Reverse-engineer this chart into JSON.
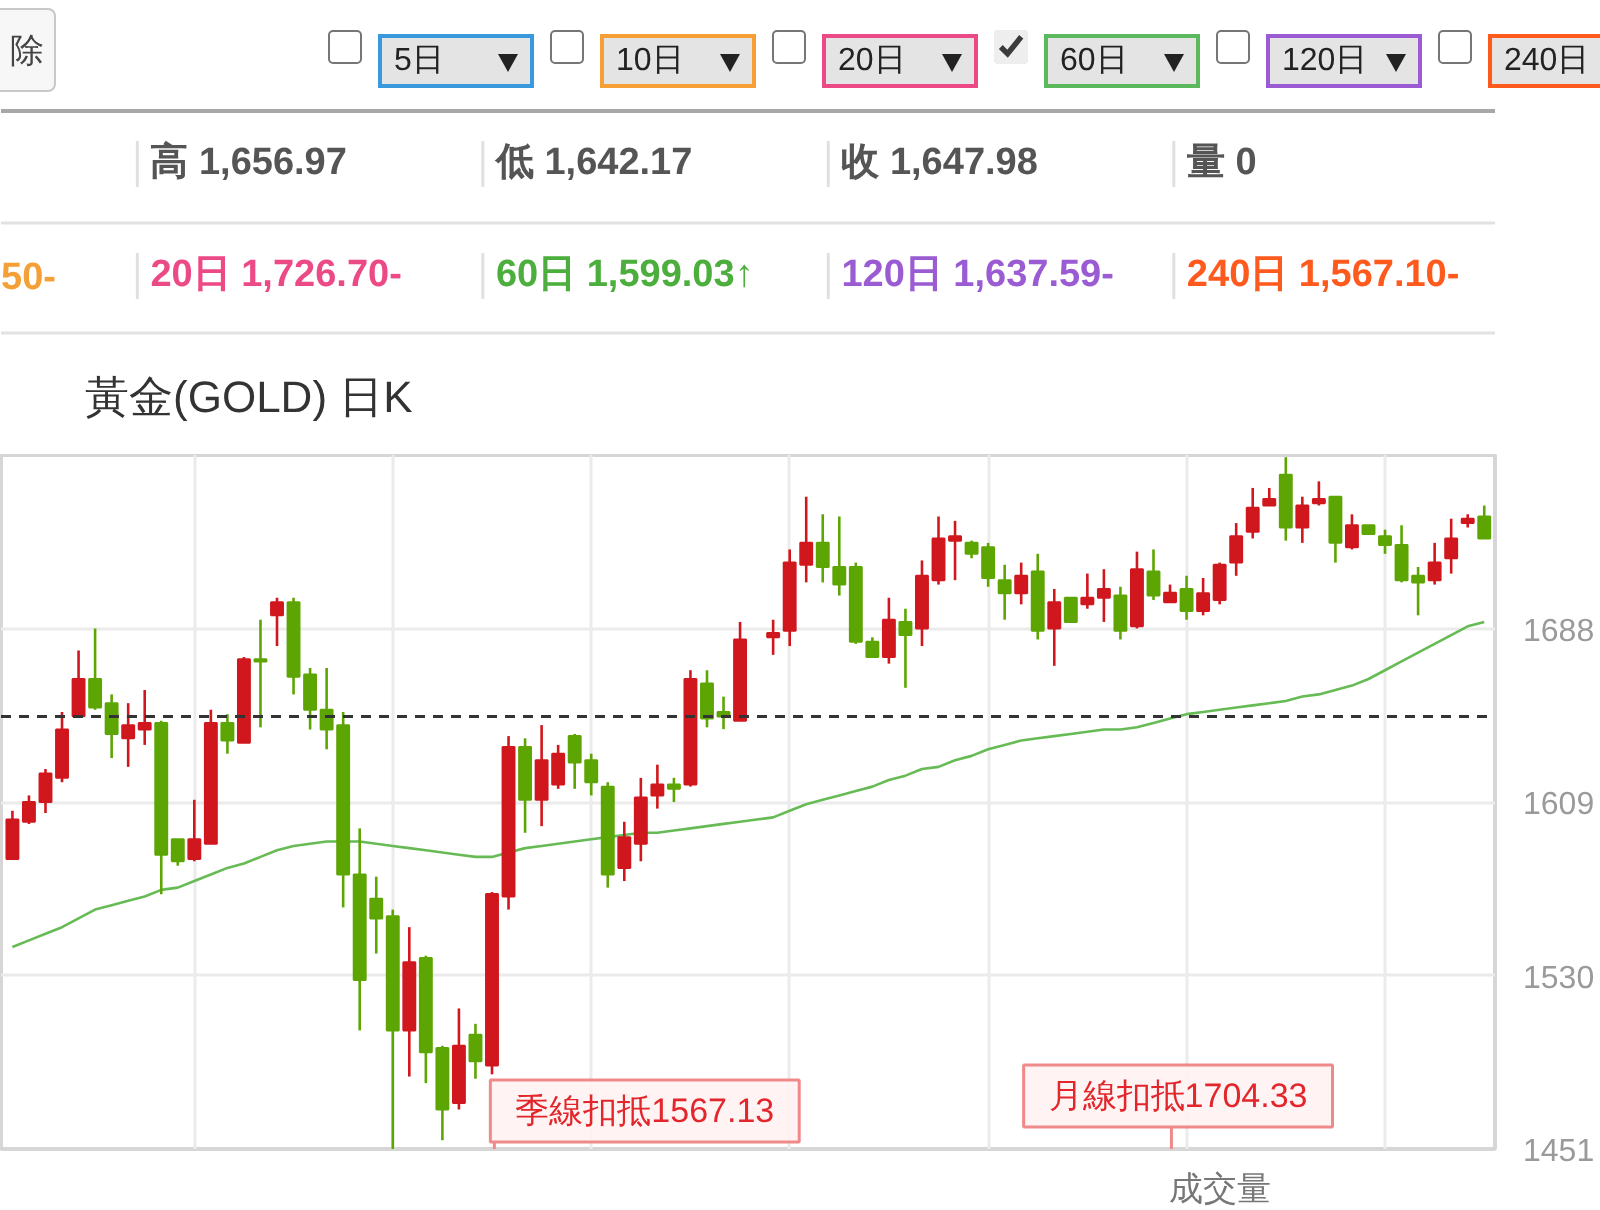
{
  "chart_data": {
    "type": "candlestick",
    "title": "黃金(GOLD) 日K",
    "categories": [
      null,
      null,
      null,
      null,
      null,
      null,
      null,
      null,
      null,
      null,
      null,
      null,
      null,
      null,
      null,
      null,
      null,
      null,
      null,
      null,
      null,
      null,
      null,
      null,
      null,
      null,
      null,
      null,
      null,
      null,
      null,
      null,
      null,
      null,
      null,
      null,
      null,
      null,
      null,
      null,
      null,
      null,
      null,
      null,
      null,
      null,
      null,
      null,
      null,
      null,
      null,
      null,
      null,
      null,
      null,
      null,
      null,
      null,
      null,
      null,
      null,
      null,
      null,
      null,
      null,
      null,
      null,
      null,
      null,
      null,
      null,
      null,
      null,
      null,
      null,
      null,
      null,
      null,
      null,
      null,
      null,
      null,
      null,
      null,
      null,
      null,
      null,
      null,
      null,
      null
    ],
    "ohlc": [
      [
        1583,
        1605,
        1583,
        1601
      ],
      [
        1600,
        1612,
        1599,
        1609
      ],
      [
        1609,
        1624,
        1604,
        1622
      ],
      [
        1620,
        1650,
        1618,
        1642
      ],
      [
        1648,
        1678,
        1648,
        1665
      ],
      [
        1665,
        1688,
        1651,
        1652
      ],
      [
        1654,
        1658,
        1629,
        1640
      ],
      [
        1638,
        1654,
        1625,
        1644
      ],
      [
        1642,
        1660,
        1635,
        1645
      ],
      [
        1645,
        1646,
        1567,
        1585
      ],
      [
        1592,
        1592,
        1580,
        1582
      ],
      [
        1583,
        1610,
        1582,
        1592
      ],
      [
        1590,
        1651,
        1590,
        1645
      ],
      [
        1645,
        1649,
        1631,
        1637
      ],
      [
        1636,
        1675,
        1636,
        1674
      ],
      [
        1674,
        1692,
        1643,
        1673
      ],
      [
        1694,
        1702,
        1680,
        1700
      ],
      [
        1700,
        1702,
        1658,
        1666
      ],
      [
        1667,
        1670,
        1642,
        1651
      ],
      [
        1651,
        1670,
        1633,
        1642
      ],
      [
        1644,
        1650,
        1561,
        1576
      ],
      [
        1576,
        1597,
        1505,
        1528
      ],
      [
        1565,
        1575,
        1540,
        1556
      ],
      [
        1557,
        1560,
        1451,
        1505
      ],
      [
        1505,
        1552,
        1484,
        1536
      ],
      [
        1538,
        1539,
        1481,
        1495
      ],
      [
        1497,
        1498,
        1455,
        1469
      ],
      [
        1472,
        1515,
        1469,
        1498
      ],
      [
        1503,
        1508,
        1483,
        1491
      ],
      [
        1489,
        1568,
        1485,
        1567.13
      ],
      [
        1566,
        1639,
        1560,
        1634
      ],
      [
        1634,
        1638,
        1595,
        1610
      ],
      [
        1610,
        1644,
        1598,
        1628
      ],
      [
        1617,
        1635,
        1615,
        1631
      ],
      [
        1639,
        1640,
        1615,
        1627
      ],
      [
        1628,
        1631,
        1612,
        1618
      ],
      [
        1616,
        1618,
        1570,
        1576
      ],
      [
        1579,
        1600,
        1573,
        1593
      ],
      [
        1590,
        1620,
        1582,
        1611
      ],
      [
        1612,
        1626,
        1606,
        1617
      ],
      [
        1617,
        1620,
        1609,
        1615
      ],
      [
        1617,
        1669,
        1616,
        1665
      ],
      [
        1663,
        1669,
        1643,
        1647
      ],
      [
        1650,
        1656.97,
        1642.17,
        1647.98
      ],
      [
        1646,
        1691,
        1646,
        1683
      ],
      null,
      [
        1684,
        1692,
        1676,
        1686
      ],
      [
        1687,
        1724,
        1680,
        1718
      ],
      [
        1717,
        1748,
        1709,
        1727
      ],
      [
        1727,
        1740,
        1709,
        1716
      ],
      [
        1716,
        1739,
        1703,
        1708
      ],
      [
        1716,
        1718,
        1681,
        1682
      ],
      [
        1682,
        1684,
        1675,
        1675
      ],
      [
        1675,
        1702,
        1672,
        1692
      ],
      [
        1691,
        1697,
        1661,
        1685
      ],
      [
        1688,
        1719,
        1680,
        1712
      ],
      [
        1710,
        1739,
        1708,
        1729
      ],
      [
        1728,
        1737,
        1710,
        1730
      ],
      [
        1727,
        1728,
        1720,
        1722
      ],
      [
        1725,
        1727,
        1707,
        1711
      ],
      [
        1710,
        1717,
        1692,
        1704
      ],
      [
        1704,
        1718,
        1699,
        1712
      ],
      [
        1714,
        1722,
        1683,
        1687
      ],
      [
        1688,
        1706,
        1671,
        1700
      ],
      [
        1702,
        1702,
        1691,
        1691
      ],
      [
        1699,
        1713,
        1697,
        1702
      ],
      [
        1702,
        1715,
        1691,
        1706
      ],
      [
        1703,
        1707,
        1683,
        1687
      ],
      [
        1689,
        1723,
        1688,
        1715
      ],
      [
        1714,
        1724,
        1701,
        1703
      ],
      [
        1700,
        1708,
        1700,
        1704.33
      ],
      [
        1706,
        1712,
        1692,
        1696
      ],
      [
        1696,
        1711,
        1694,
        1704
      ],
      [
        1701,
        1718,
        1699,
        1717
      ],
      [
        1718,
        1736,
        1712,
        1730
      ],
      [
        1732,
        1752,
        1729,
        1743
      ],
      [
        1744,
        1752,
        1744,
        1747
      ],
      [
        1758,
        1766,
        1728,
        1734
      ],
      [
        1734,
        1748,
        1727,
        1744
      ],
      [
        1745,
        1755,
        1744,
        1747
      ],
      [
        1748,
        1748,
        1718,
        1727
      ],
      [
        1725,
        1740,
        1724,
        1735
      ],
      [
        1735,
        1735,
        1731,
        1731
      ],
      [
        1730,
        1733,
        1722,
        1726
      ],
      [
        1726,
        1735,
        1709,
        1710
      ],
      [
        1712,
        1716,
        1694,
        1709
      ],
      [
        1710,
        1727,
        1708,
        1718
      ],
      [
        1720,
        1738,
        1713,
        1729
      ],
      [
        1736,
        1740,
        1734,
        1738
      ],
      [
        1739,
        1744,
        1729,
        1729
      ]
    ],
    "colors": [
      "#d0171d",
      "#d0171d",
      "#d0171d",
      "#d0171d",
      "#d0171d",
      "#5ca502",
      "#5ca502",
      "#d0171d",
      "#d0171d",
      "#5ca502",
      "#5ca502",
      "#d0171d",
      "#d0171d",
      "#5ca502",
      "#d0171d",
      "#5ca502",
      "#d0171d",
      "#5ca502",
      "#5ca502",
      "#5ca502",
      "#5ca502",
      "#5ca502",
      "#5ca502",
      "#5ca502",
      "#d0171d",
      "#5ca502",
      "#5ca502",
      "#d0171d",
      "#5ca502",
      "#d0171d",
      "#d0171d",
      "#5ca502",
      "#d0171d",
      "#d0171d",
      "#5ca502",
      "#5ca502",
      "#5ca502",
      "#d0171d",
      "#d0171d",
      "#d0171d",
      "#5ca502",
      "#d0171d",
      "#5ca502",
      "#5ca502",
      "#d0171d",
      null,
      "#d0171d",
      "#d0171d",
      "#d0171d",
      "#5ca502",
      "#5ca502",
      "#5ca502",
      "#5ca502",
      "#d0171d",
      "#5ca502",
      "#d0171d",
      "#d0171d",
      "#d0171d",
      "#5ca502",
      "#5ca502",
      "#5ca502",
      "#d0171d",
      "#5ca502",
      "#d0171d",
      "#5ca502",
      "#d0171d",
      "#d0171d",
      "#5ca502",
      "#d0171d",
      "#5ca502",
      "#d0171d",
      "#5ca502",
      "#d0171d",
      "#d0171d",
      "#d0171d",
      "#d0171d",
      "#d0171d",
      "#5ca502",
      "#d0171d",
      "#d0171d",
      "#5ca502",
      "#d0171d",
      "#5ca502",
      "#5ca502",
      "#5ca502",
      "#5ca502",
      "#d0171d",
      "#d0171d",
      "#d0171d",
      "#5ca502"
    ],
    "series": [
      {
        "type": "line",
        "color": "#66bb55",
        "values": [
          1543,
          1546,
          1549,
          1552,
          1556,
          1560,
          1562,
          1564,
          1566,
          1569,
          1570,
          1573,
          1576,
          1579,
          1581,
          1584,
          1587,
          1589,
          1590,
          1591,
          1591,
          1591,
          1590,
          1589,
          1588,
          1587,
          1586,
          1585,
          1584,
          1584,
          1586,
          1588,
          1589,
          1590,
          1591,
          1592,
          1593,
          1594,
          1595,
          1595,
          1596,
          1597,
          1598,
          1599.03,
          1600,
          1601,
          1602,
          1605,
          1608,
          1610,
          1612,
          1614,
          1616,
          1619,
          1621,
          1624,
          1625,
          1628,
          1630,
          1633,
          1635,
          1637,
          1638,
          1639,
          1640,
          1641,
          1642,
          1642,
          1643,
          1645,
          1647,
          1649,
          1650,
          1651,
          1652,
          1653,
          1654,
          1655,
          1657,
          1658,
          1660,
          1662,
          1665,
          1669,
          1673,
          1677,
          1681,
          1685,
          1689,
          1691
        ]
      }
    ],
    "ylim": [
      1451,
      1767
    ],
    "yticks": [
      1451,
      1530,
      1609,
      1688
    ],
    "tick_labels": "y",
    "grid": true,
    "ref_lines": [
      {
        "axis": "y",
        "value": 1647.98,
        "color": "#333333",
        "line_style": "dashed"
      }
    ],
    "annotations": [
      "除",
      "5日",
      "10日",
      "20日",
      "60日",
      "120日",
      "240日",
      "高 1,656.97",
      "低 1,642.17",
      "收 1,647.98",
      "量 0",
      "50-",
      "20日 1,726.70-",
      "60日 1,599.03↑",
      "120日 1,637.59-",
      "240日 1,567.10-",
      "季線扣抵1567.13",
      "月線扣抵1704.33",
      "成交量"
    ]
  }
}
